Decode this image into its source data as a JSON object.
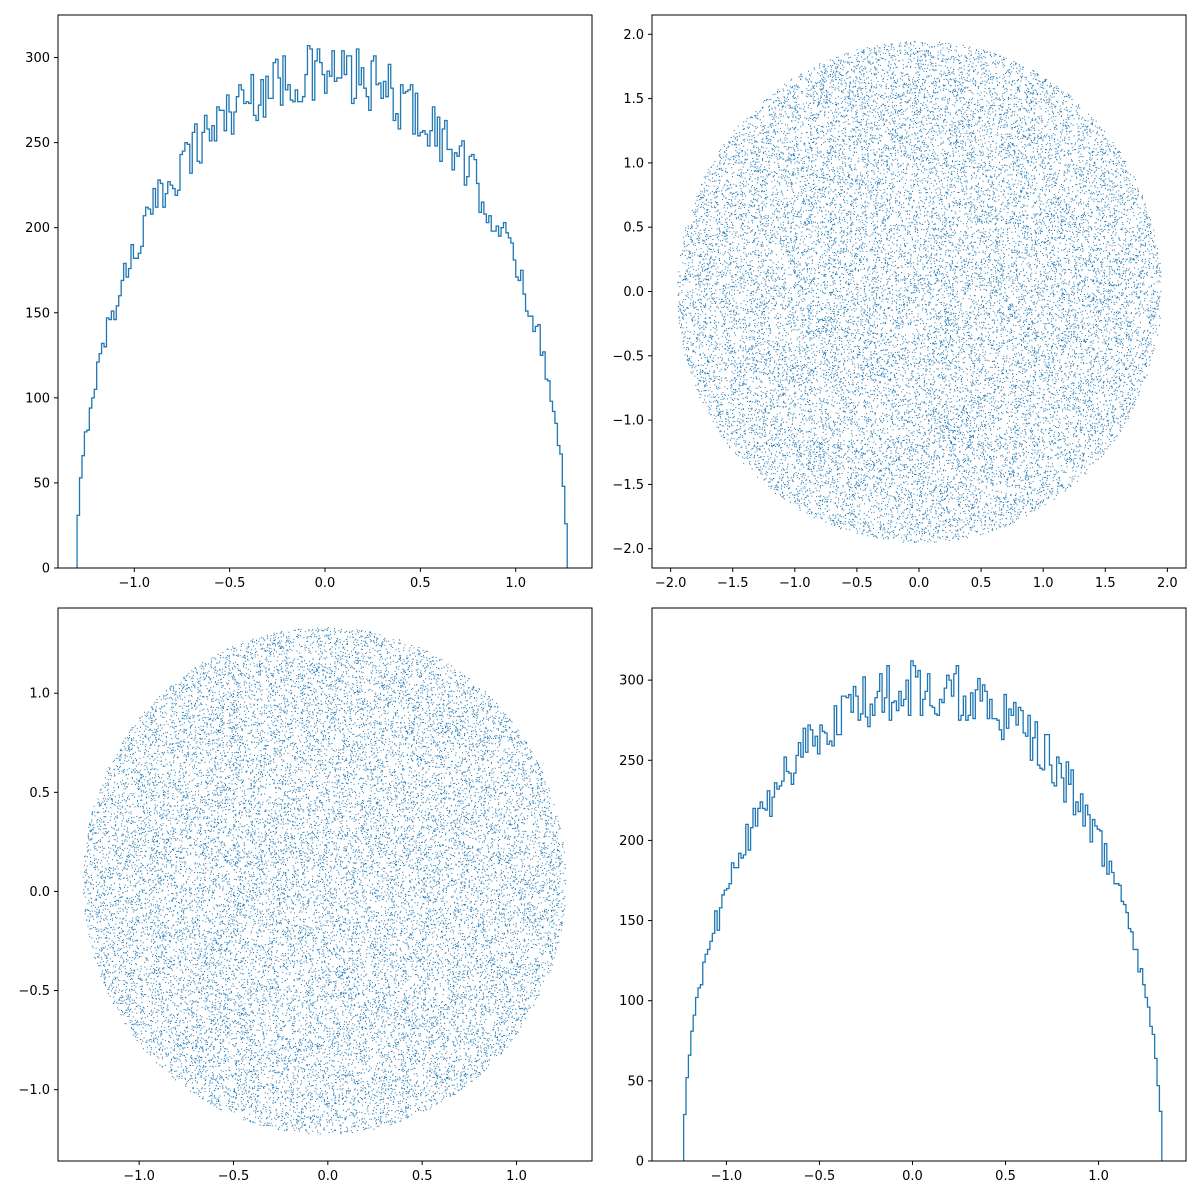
{
  "colors": {
    "series": "#1f77b4",
    "frame": "#000000",
    "background": "#ffffff"
  },
  "chart_data": [
    {
      "type": "histogram",
      "title": "",
      "xlabel": "",
      "ylabel": "",
      "xlim": [
        -1.4,
        1.4
      ],
      "ylim": [
        0,
        325
      ],
      "xticks": [
        -1.0,
        -0.5,
        0.0,
        0.5,
        1.0
      ],
      "xtick_labels": [
        "−1.0",
        "−0.5",
        "0.0",
        "0.5",
        "1.0"
      ],
      "yticks": [
        0,
        50,
        100,
        150,
        200,
        250,
        300
      ],
      "ytick_labels": [
        "0",
        "50",
        "100",
        "150",
        "200",
        "250",
        "300"
      ],
      "histtype": "step",
      "bins": 200,
      "bin_range": [
        -1.3,
        1.27
      ],
      "envelope_peak": 290,
      "noise_amplitude": 18,
      "grid": false,
      "legend": "none"
    },
    {
      "type": "scatter",
      "title": "",
      "xlabel": "",
      "ylabel": "",
      "xlim": [
        -2.15,
        2.15
      ],
      "ylim": [
        -2.15,
        2.15
      ],
      "xticks": [
        -2.0,
        -1.5,
        -1.0,
        -0.5,
        0.0,
        0.5,
        1.0,
        1.5,
        2.0
      ],
      "xtick_labels": [
        "−2.0",
        "−1.5",
        "−1.0",
        "−0.5",
        "0.0",
        "0.5",
        "1.0",
        "1.5",
        "2.0"
      ],
      "yticks": [
        2.0,
        1.5,
        1.0,
        0.5,
        0.0,
        -0.5,
        -1.0,
        -1.5,
        -2.0
      ],
      "ytick_labels": [
        "2.0",
        "1.5",
        "1.0",
        "0.5",
        "0.0",
        "−0.5",
        "−1.0",
        "−1.5",
        "−2.0"
      ],
      "distribution": "uniform disk",
      "center": [
        0.0,
        0.0
      ],
      "radius": 1.95,
      "marker": "pixel",
      "grid": false,
      "legend": "none"
    },
    {
      "type": "scatter",
      "title": "",
      "xlabel": "",
      "ylabel": "",
      "xlim": [
        -1.43,
        1.4
      ],
      "ylim": [
        -1.36,
        1.43
      ],
      "xticks": [
        -1.0,
        -0.5,
        0.0,
        0.5,
        1.0
      ],
      "xtick_labels": [
        "−1.0",
        "−0.5",
        "0.0",
        "0.5",
        "1.0"
      ],
      "yticks": [
        1.0,
        0.5,
        0.0,
        -0.5,
        -1.0
      ],
      "ytick_labels": [
        "1.0",
        "0.5",
        "0.0",
        "−0.5",
        "−1.0"
      ],
      "distribution": "uniform disk",
      "center": [
        -0.02,
        0.055
      ],
      "radius": 1.28,
      "marker": "pixel",
      "grid": false,
      "legend": "none"
    },
    {
      "type": "histogram",
      "title": "",
      "xlabel": "",
      "ylabel": "",
      "xlim": [
        -1.4,
        1.47
      ],
      "ylim": [
        0,
        345
      ],
      "xticks": [
        -1.0,
        -0.5,
        0.0,
        0.5,
        1.0
      ],
      "xtick_labels": [
        "−1.0",
        "−0.5",
        "0.0",
        "0.5",
        "1.0"
      ],
      "yticks": [
        0,
        50,
        100,
        150,
        200,
        250,
        300
      ],
      "ytick_labels": [
        "0",
        "50",
        "100",
        "150",
        "200",
        "250",
        "300"
      ],
      "histtype": "step",
      "bins": 200,
      "bin_range": [
        -1.23,
        1.34
      ],
      "envelope_peak": 295,
      "noise_amplitude": 18,
      "grid": false,
      "legend": "none"
    }
  ]
}
